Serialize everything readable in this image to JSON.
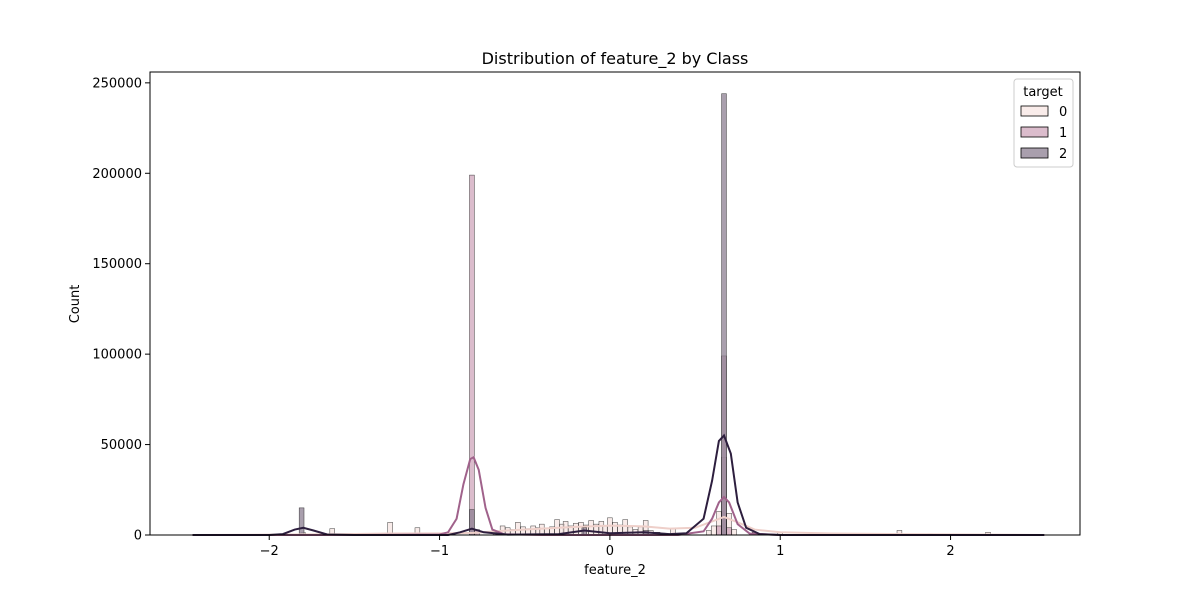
{
  "chart_data": {
    "type": "histogram",
    "title": "Distribution of feature_2 by Class",
    "xlabel": "feature_2",
    "ylabel": "Count",
    "xlim": [
      -2.7,
      2.76
    ],
    "ylim": [
      0,
      256000
    ],
    "xticks": [
      -2,
      -1,
      0,
      1,
      2
    ],
    "xtick_labels": [
      "−2",
      "−1",
      "0",
      "1",
      "2"
    ],
    "yticks": [
      0,
      50000,
      100000,
      150000,
      200000,
      250000
    ],
    "ytick_labels": [
      "0",
      "50000",
      "100000",
      "150000",
      "200000",
      "250000"
    ],
    "bin_width": 0.0285,
    "legend": {
      "title": "target",
      "placement": "top-right"
    },
    "series": [
      {
        "name": "0",
        "color": "#f7e6e3",
        "kde_color": "#eecfc9",
        "bins": [
          [
            -1.8,
            1200
          ],
          [
            -1.63,
            3500
          ],
          [
            -1.45,
            800
          ],
          [
            -1.29,
            7000
          ],
          [
            -1.13,
            4000
          ],
          [
            -0.95,
            900
          ],
          [
            -0.8,
            2500
          ],
          [
            -0.67,
            1500
          ],
          [
            -0.63,
            5000
          ],
          [
            -0.6,
            4000
          ],
          [
            -0.57,
            3000
          ],
          [
            -0.54,
            7000
          ],
          [
            -0.51,
            4500
          ],
          [
            -0.48,
            3500
          ],
          [
            -0.45,
            5000
          ],
          [
            -0.42,
            4000
          ],
          [
            -0.4,
            6000
          ],
          [
            -0.37,
            3500
          ],
          [
            -0.34,
            4500
          ],
          [
            -0.31,
            8500
          ],
          [
            -0.28,
            6000
          ],
          [
            -0.26,
            7500
          ],
          [
            -0.23,
            5000
          ],
          [
            -0.2,
            6500
          ],
          [
            -0.17,
            7000
          ],
          [
            -0.14,
            5500
          ],
          [
            -0.11,
            8000
          ],
          [
            -0.08,
            6000
          ],
          [
            -0.05,
            7500
          ],
          [
            -0.03,
            5000
          ],
          [
            0.0,
            9500
          ],
          [
            0.03,
            7000
          ],
          [
            0.06,
            5500
          ],
          [
            0.09,
            8500
          ],
          [
            0.12,
            4500
          ],
          [
            0.15,
            3000
          ],
          [
            0.18,
            4500
          ],
          [
            0.21,
            8000
          ],
          [
            0.24,
            2500
          ],
          [
            0.28,
            1500
          ],
          [
            0.31,
            1000
          ],
          [
            0.37,
            3500
          ],
          [
            0.43,
            800
          ],
          [
            0.58,
            2500
          ],
          [
            0.61,
            5000
          ],
          [
            0.64,
            13000
          ],
          [
            0.67,
            43000
          ],
          [
            0.7,
            12000
          ],
          [
            0.73,
            3000
          ],
          [
            0.85,
            1500
          ],
          [
            1.0,
            1500
          ],
          [
            1.22,
            1000
          ],
          [
            1.38,
            800
          ],
          [
            1.7,
            2500
          ],
          [
            1.88,
            700
          ],
          [
            2.22,
            1500
          ]
        ],
        "kde": [
          [
            -2.45,
            0
          ],
          [
            -2.0,
            200
          ],
          [
            -1.6,
            400
          ],
          [
            -1.3,
            800
          ],
          [
            -1.0,
            900
          ],
          [
            -0.8,
            1200
          ],
          [
            -0.6,
            2500
          ],
          [
            -0.4,
            3500
          ],
          [
            -0.2,
            4500
          ],
          [
            0.0,
            5200
          ],
          [
            0.2,
            4800
          ],
          [
            0.35,
            3500
          ],
          [
            0.5,
            4000
          ],
          [
            0.6,
            7500
          ],
          [
            0.67,
            10000
          ],
          [
            0.75,
            7000
          ],
          [
            0.85,
            3000
          ],
          [
            1.0,
            1500
          ],
          [
            1.3,
            800
          ],
          [
            1.7,
            500
          ],
          [
            2.1,
            300
          ],
          [
            2.55,
            0
          ]
        ]
      },
      {
        "name": "1",
        "color": "#cfa6bb",
        "kde_color": "#a0628b",
        "bins": [
          [
            -0.81,
            199000
          ],
          [
            -0.78,
            3000
          ],
          [
            0.64,
            5000
          ],
          [
            0.67,
            99000
          ],
          [
            0.7,
            4000
          ]
        ],
        "kde": [
          [
            -2.45,
            0
          ],
          [
            -1.5,
            0
          ],
          [
            -1.0,
            300
          ],
          [
            -0.95,
            1500
          ],
          [
            -0.9,
            9000
          ],
          [
            -0.86,
            28000
          ],
          [
            -0.82,
            42000
          ],
          [
            -0.8,
            43000
          ],
          [
            -0.77,
            36000
          ],
          [
            -0.73,
            15000
          ],
          [
            -0.69,
            3000
          ],
          [
            -0.62,
            400
          ],
          [
            -0.4,
            0
          ],
          [
            0.4,
            0
          ],
          [
            0.55,
            2000
          ],
          [
            0.6,
            9000
          ],
          [
            0.64,
            18000
          ],
          [
            0.67,
            21000
          ],
          [
            0.7,
            18000
          ],
          [
            0.75,
            6000
          ],
          [
            0.82,
            800
          ],
          [
            1.0,
            0
          ],
          [
            2.55,
            0
          ]
        ]
      },
      {
        "name": "2",
        "color": "#8c7f91",
        "kde_color": "#2d1e3e",
        "bins": [
          [
            -1.81,
            15000
          ],
          [
            -0.81,
            14000
          ],
          [
            -0.15,
            4000
          ],
          [
            0.21,
            2500
          ],
          [
            0.67,
            244000
          ]
        ],
        "kde": [
          [
            -2.45,
            0
          ],
          [
            -2.0,
            0
          ],
          [
            -1.92,
            500
          ],
          [
            -1.85,
            3000
          ],
          [
            -1.8,
            4000
          ],
          [
            -1.74,
            2500
          ],
          [
            -1.66,
            300
          ],
          [
            -1.5,
            0
          ],
          [
            -0.95,
            0
          ],
          [
            -0.88,
            1500
          ],
          [
            -0.81,
            3500
          ],
          [
            -0.74,
            1500
          ],
          [
            -0.6,
            200
          ],
          [
            -0.3,
            500
          ],
          [
            -0.15,
            2500
          ],
          [
            0.0,
            1000
          ],
          [
            0.2,
            1500
          ],
          [
            0.35,
            500
          ],
          [
            0.45,
            1000
          ],
          [
            0.55,
            9000
          ],
          [
            0.6,
            30000
          ],
          [
            0.64,
            52000
          ],
          [
            0.67,
            55000
          ],
          [
            0.71,
            45000
          ],
          [
            0.75,
            18000
          ],
          [
            0.8,
            4000
          ],
          [
            0.88,
            500
          ],
          [
            1.0,
            0
          ],
          [
            2.55,
            0
          ]
        ]
      }
    ]
  }
}
